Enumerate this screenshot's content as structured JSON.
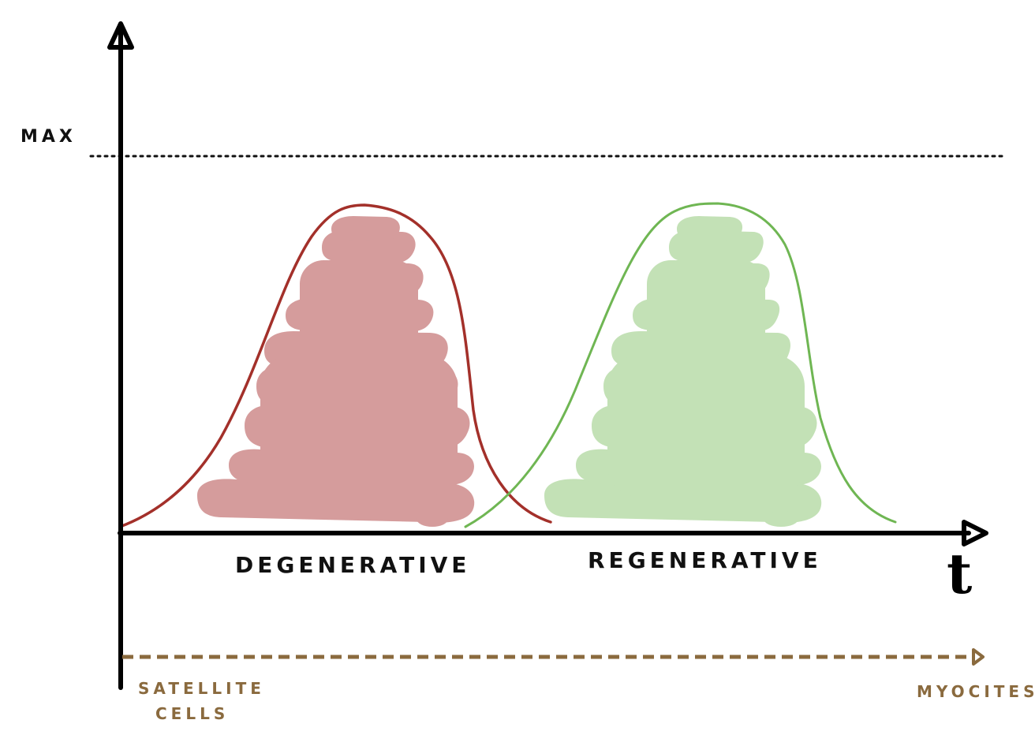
{
  "labels": {
    "max": "MAX",
    "time_axis": "t",
    "phase_1": "DEGENERATIVE",
    "phase_2": "REGENERATIVE",
    "start_cell_line1": "SATELLITE",
    "start_cell_line2": "CELLS",
    "end_cell": "MYOCITES"
  },
  "colors": {
    "axis": "#000000",
    "degenerative_line": "#a3302a",
    "degenerative_fill": "#d59c9c",
    "regenerative_line": "#6fb653",
    "regenerative_fill": "#c3e1b6",
    "differentiation_arrow": "#8a6a3e"
  },
  "icons": {
    "axis_arrowhead": "open-triangle-arrow",
    "differentiation_arrowhead": "small-open-triangle-arrow"
  }
}
